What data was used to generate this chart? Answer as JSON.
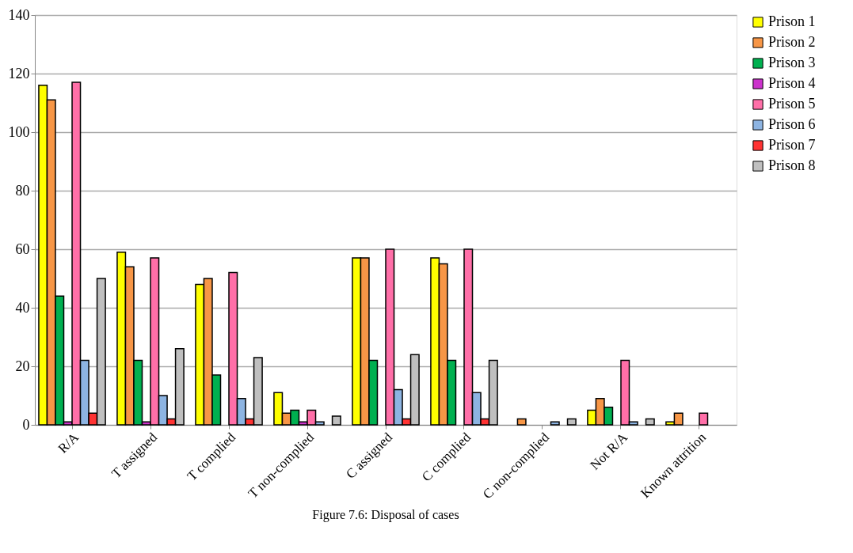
{
  "chart_data": {
    "type": "bar",
    "categories": [
      "R/A",
      "T assigned",
      "T complied",
      "T non-complied",
      "C assigned",
      "C complied",
      "C non-complied",
      "Not R/A",
      "Known attrition"
    ],
    "series": [
      {
        "name": "Prison 1",
        "color": "#ffff00",
        "values": [
          116,
          59,
          48,
          11,
          57,
          57,
          0,
          5,
          1
        ]
      },
      {
        "name": "Prison 2",
        "color": "#f79646",
        "values": [
          111,
          54,
          50,
          4,
          57,
          55,
          2,
          9,
          4
        ]
      },
      {
        "name": "Prison 3",
        "color": "#00b050",
        "values": [
          44,
          22,
          17,
          5,
          22,
          22,
          0,
          6,
          0
        ]
      },
      {
        "name": "Prison 4",
        "color": "#cc33cc",
        "values": [
          1,
          1,
          0,
          1,
          0,
          0,
          0,
          0,
          0
        ]
      },
      {
        "name": "Prison 5",
        "color": "#ff6fa8",
        "values": [
          117,
          57,
          52,
          5,
          60,
          60,
          0,
          22,
          4
        ]
      },
      {
        "name": "Prison 6",
        "color": "#8db4e2",
        "values": [
          22,
          10,
          9,
          1,
          12,
          11,
          1,
          1,
          0
        ]
      },
      {
        "name": "Prison 7",
        "color": "#ff3333",
        "values": [
          4,
          2,
          2,
          0,
          2,
          2,
          0,
          0,
          0
        ]
      },
      {
        "name": "Prison 8",
        "color": "#bfbfbf",
        "values": [
          50,
          26,
          23,
          3,
          24,
          22,
          2,
          2,
          0
        ]
      }
    ],
    "ylim": [
      0,
      140
    ],
    "yticks": [
      0,
      20,
      40,
      60,
      80,
      100,
      120,
      140
    ],
    "grid": "y",
    "legend": "right",
    "annotations": [
      "Figure 7.6: Disposal of cases"
    ]
  }
}
